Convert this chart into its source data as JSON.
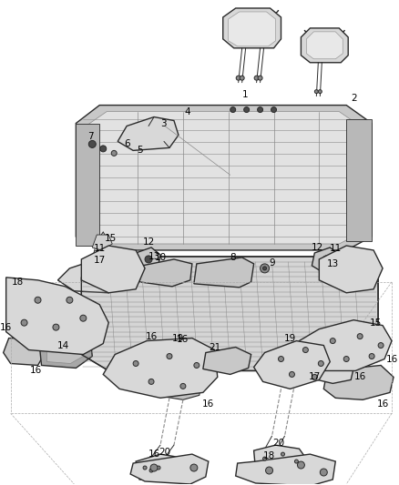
{
  "bg_color": "#ffffff",
  "line_color": "#2a2a2a",
  "label_color": "#000000",
  "gray_dark": "#4a4a4a",
  "gray_med": "#8a8a8a",
  "gray_light": "#c8c8c8",
  "gray_fill": "#d8d8d8",
  "label_fontsize": 7.5,
  "fig_width": 4.38,
  "fig_height": 5.33,
  "dpi": 100
}
